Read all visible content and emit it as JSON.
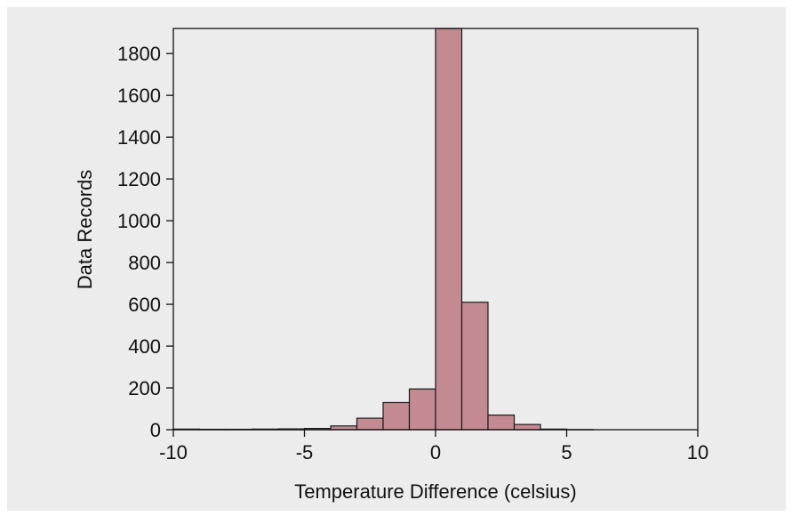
{
  "chart_data": {
    "type": "bar",
    "subtype": "histogram",
    "title": "",
    "xlabel": "Temperature Difference (celsius)",
    "ylabel": "Data Records",
    "xlim": [
      -10,
      10
    ],
    "ylim": [
      0,
      1920
    ],
    "xticks": [
      -10,
      -5,
      0,
      5,
      10
    ],
    "yticks": [
      0,
      200,
      400,
      600,
      800,
      1000,
      1200,
      1400,
      1600,
      1800
    ],
    "grid": false,
    "legend": "none",
    "colors": {
      "background": "#ececec",
      "plot_area": "#ececec",
      "bar_fill": "#c48a91",
      "bar_edge": "#1a1a1a"
    },
    "bins": [
      {
        "x0": -10,
        "x1": -9,
        "value": 3
      },
      {
        "x0": -9,
        "x1": -8,
        "value": 2
      },
      {
        "x0": -8,
        "x1": -7,
        "value": 2
      },
      {
        "x0": -7,
        "x1": -6,
        "value": 3
      },
      {
        "x0": -6,
        "x1": -5,
        "value": 4
      },
      {
        "x0": -5,
        "x1": -4,
        "value": 6
      },
      {
        "x0": -4,
        "x1": -3,
        "value": 18
      },
      {
        "x0": -3,
        "x1": -2,
        "value": 55
      },
      {
        "x0": -2,
        "x1": -1,
        "value": 130
      },
      {
        "x0": -1,
        "x1": 0,
        "value": 195
      },
      {
        "x0": 0,
        "x1": 1,
        "value": 1920
      },
      {
        "x0": 1,
        "x1": 2,
        "value": 610
      },
      {
        "x0": 2,
        "x1": 3,
        "value": 70
      },
      {
        "x0": 3,
        "x1": 4,
        "value": 25
      },
      {
        "x0": 4,
        "x1": 5,
        "value": 3
      },
      {
        "x0": 5,
        "x1": 6,
        "value": 1
      },
      {
        "x0": 6,
        "x1": 7,
        "value": 0
      },
      {
        "x0": 7,
        "x1": 8,
        "value": 0
      },
      {
        "x0": 8,
        "x1": 9,
        "value": 0
      },
      {
        "x0": 9,
        "x1": 10,
        "value": 0
      }
    ]
  }
}
